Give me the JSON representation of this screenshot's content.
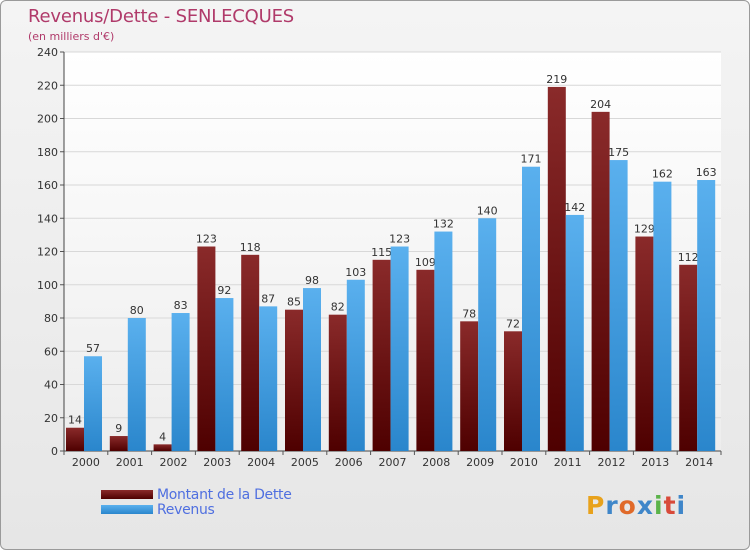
{
  "header": {
    "title": "Revenus/Dette - SENLECQUES",
    "subtitle": "(en milliers d'€)"
  },
  "colors": {
    "dette": "#6e1212",
    "revenus": "#3a9ae0",
    "title": "#b03a6a",
    "legend_text": "#4f6fe0"
  },
  "chart_data": {
    "type": "bar",
    "title": "Revenus/Dette - SENLECQUES",
    "ylabel": "(en milliers d'€)",
    "xlabel": "",
    "ylim": [
      0,
      240
    ],
    "yticks": [
      0,
      20,
      40,
      60,
      80,
      100,
      120,
      140,
      160,
      180,
      200,
      220,
      240
    ],
    "grid": true,
    "legend_position": "bottom-left",
    "categories": [
      "2000",
      "2001",
      "2002",
      "2003",
      "2004",
      "2005",
      "2006",
      "2007",
      "2008",
      "2009",
      "2010",
      "2011",
      "2012",
      "2013",
      "2014"
    ],
    "series": [
      {
        "name": "Montant de la Dette",
        "values": [
          14,
          9,
          4,
          123,
          118,
          85,
          82,
          115,
          109,
          78,
          72,
          219,
          204,
          129,
          112
        ]
      },
      {
        "name": "Revenus",
        "values": [
          57,
          80,
          83,
          92,
          87,
          98,
          103,
          123,
          132,
          140,
          171,
          142,
          175,
          162,
          163
        ]
      }
    ]
  },
  "legend": {
    "items": [
      {
        "label": "Montant de la Dette",
        "color": "#6e1212"
      },
      {
        "label": "Revenus",
        "color": "#3a9ae0"
      }
    ]
  },
  "logo": {
    "letters": [
      "P",
      "r",
      "o",
      "x",
      "i",
      "t",
      "i"
    ],
    "colors": [
      "#e8a21c",
      "#3f86c9",
      "#e06a2a",
      "#3f86c9",
      "#5bb34a",
      "#d84a3a",
      "#3f86c9"
    ]
  }
}
